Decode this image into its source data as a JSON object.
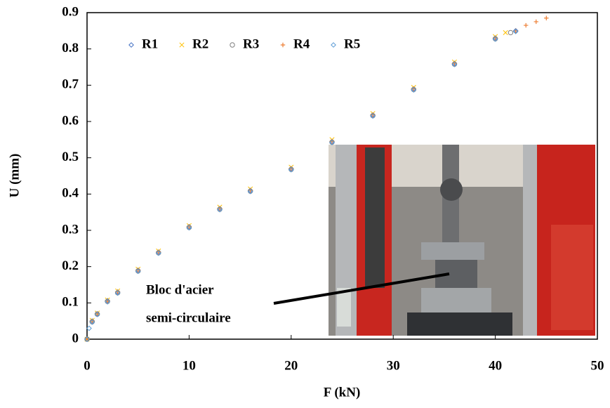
{
  "chart_data": {
    "type": "scatter",
    "x_label": "F (kN)",
    "y_label": "U (mm)",
    "xlim": [
      0,
      50
    ],
    "xticks": [
      0,
      10,
      20,
      30,
      40,
      50
    ],
    "ylim": [
      0,
      0.9
    ],
    "yticks": [
      0,
      0.1,
      0.2,
      0.3,
      0.4,
      0.5,
      0.6,
      0.7,
      0.8,
      0.9
    ],
    "annotations": [
      "Bloc d'acier",
      "semi-circulaire"
    ],
    "series": [
      {
        "name": "R1",
        "color": "#4472c4",
        "marker": "diamond",
        "x": [
          0,
          0.5,
          1,
          2,
          3,
          5,
          7,
          10,
          13,
          16,
          20,
          24,
          28,
          32,
          36,
          40,
          42
        ],
        "values": [
          0,
          0.05,
          0.07,
          0.106,
          0.13,
          0.19,
          0.24,
          0.31,
          0.36,
          0.41,
          0.47,
          0.545,
          0.618,
          0.69,
          0.76,
          0.83,
          0.85
        ]
      },
      {
        "name": "R2",
        "color": "#ffc000",
        "marker": "cross",
        "x": [
          0,
          0.5,
          1,
          2,
          3,
          5,
          7,
          10,
          13,
          16,
          20,
          24,
          28,
          32,
          36,
          40,
          41
        ],
        "values": [
          0,
          0.052,
          0.072,
          0.108,
          0.133,
          0.193,
          0.243,
          0.313,
          0.364,
          0.414,
          0.474,
          0.55,
          0.622,
          0.694,
          0.764,
          0.834,
          0.845
        ]
      },
      {
        "name": "R3",
        "color": "#7f7f7f",
        "marker": "circle",
        "x": [
          0,
          0.5,
          1,
          2,
          3,
          5,
          7,
          10,
          13,
          16,
          20,
          24,
          28,
          32,
          36,
          40,
          41.5
        ],
        "values": [
          0,
          0.048,
          0.069,
          0.104,
          0.128,
          0.188,
          0.238,
          0.308,
          0.358,
          0.408,
          0.468,
          0.543,
          0.616,
          0.688,
          0.758,
          0.828,
          0.845
        ]
      },
      {
        "name": "R4",
        "color": "#ed7d31",
        "marker": "plus",
        "x": [
          0,
          0.5,
          1,
          2,
          3,
          5,
          7,
          10,
          13,
          16,
          20,
          24,
          28,
          32,
          36,
          40,
          42,
          43,
          44,
          45
        ],
        "values": [
          0,
          0.05,
          0.07,
          0.105,
          0.13,
          0.19,
          0.24,
          0.31,
          0.36,
          0.41,
          0.47,
          0.545,
          0.618,
          0.69,
          0.76,
          0.83,
          0.85,
          0.865,
          0.875,
          0.885
        ]
      },
      {
        "name": "R5",
        "color": "#5b9bd5",
        "marker": "diamond",
        "x": [
          0,
          0.2,
          0.5,
          1,
          2,
          3,
          5,
          7,
          10,
          13,
          16,
          20,
          24,
          28,
          32,
          36,
          40,
          42
        ],
        "values": [
          0,
          0.03,
          0.047,
          0.068,
          0.103,
          0.127,
          0.187,
          0.237,
          0.307,
          0.357,
          0.407,
          0.467,
          0.542,
          0.615,
          0.687,
          0.757,
          0.827,
          0.848
        ]
      }
    ]
  }
}
